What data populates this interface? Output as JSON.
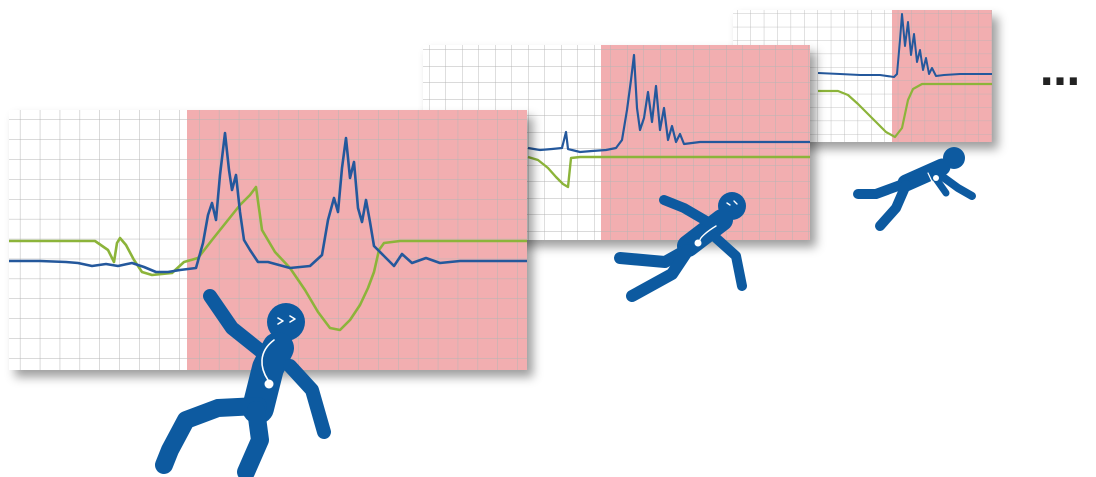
{
  "colors": {
    "background": "#ffffff",
    "grid_line": "#b5b5b5",
    "alert_zone": "#f2aeb0",
    "signal_blue": "#24589c",
    "signal_green": "#8cb43a",
    "figure": "#0d5aa0",
    "shadow": "#555555"
  },
  "panels": [
    {
      "name": "panel-large",
      "alert_start_fraction": 0.34
    },
    {
      "name": "panel-medium",
      "alert_start_fraction": 0.46
    },
    {
      "name": "panel-small",
      "alert_start_fraction": 0.6
    }
  ],
  "continuation_text": "…",
  "icons": {
    "figure": "falling-person-icon",
    "sensor": "pendant-sensor-icon"
  }
}
